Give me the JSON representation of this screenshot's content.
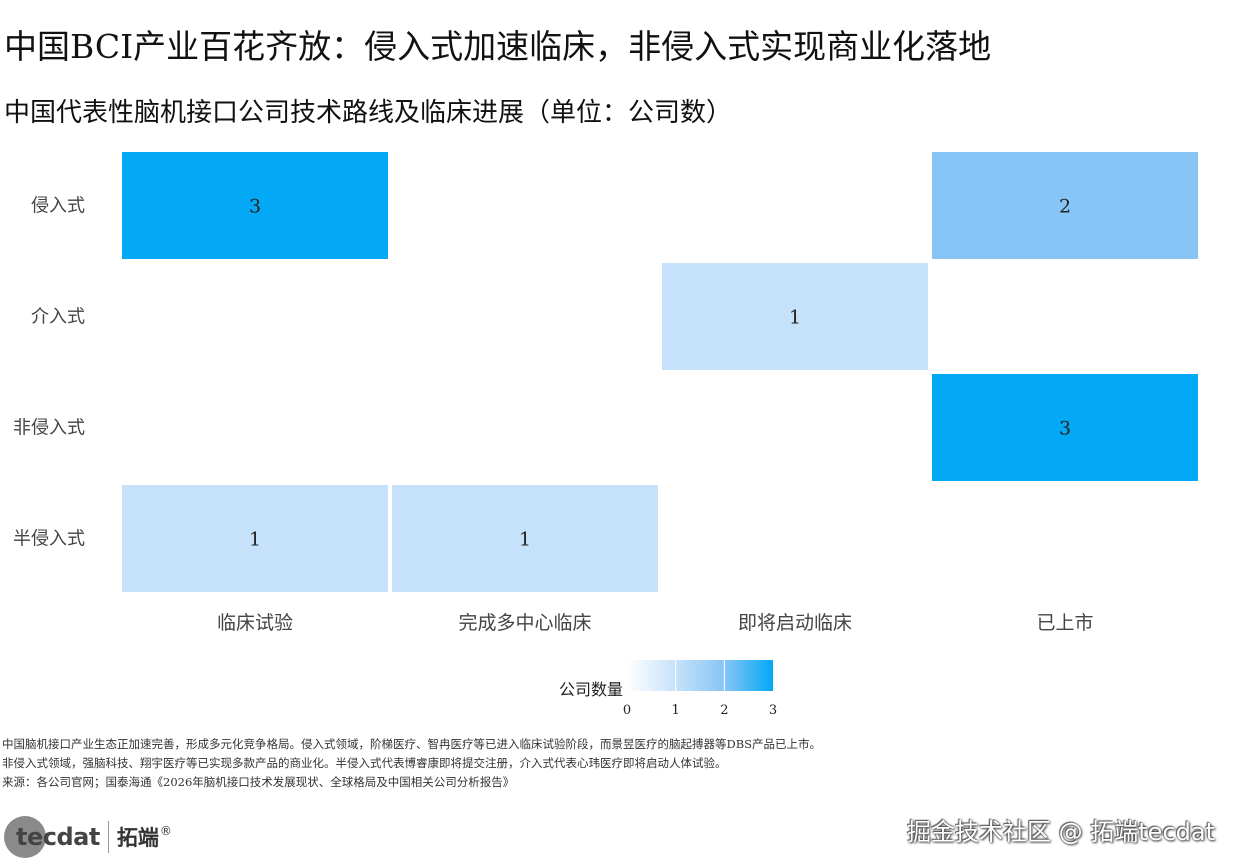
{
  "page": {
    "title": "中国BCI产业百花齐放：侵入式加速临床，非侵入式实现商业化落地",
    "notes": [
      "中国脑机接口产业生态正加速完善，形成多元化竞争格局。侵入式领域，阶梯医疗、智冉医疗等已进入临床试验阶段，而景昱医疗的脑起搏器等DBS产品已上市。",
      "非侵入式领域，强脑科技、翔宇医疗等已实现多款产品的商业化。半侵入式代表博睿康即将提交注册，介入式代表心玮医疗即将启动人体试验。",
      "来源：各公司官网；国泰海通《2026年脑机接口技术发展现状、全球格局及中国相关公司分析报告》"
    ],
    "brand_word": "tecdat",
    "brand_cn": "拓端",
    "brand_reg": "®",
    "watermark": "掘金技术社区 @ 拓端tecdat"
  },
  "chart_data": {
    "type": "heatmap",
    "title": "中国代表性脑机接口公司技术路线及临床进展（单位：公司数）",
    "x_categories": [
      "临床试验",
      "完成多中心临床",
      "即将启动临床",
      "已上市"
    ],
    "y_categories": [
      "侵入式",
      "介入式",
      "非侵入式",
      "半侵入式"
    ],
    "values": [
      [
        3,
        null,
        null,
        2
      ],
      [
        null,
        null,
        1,
        null
      ],
      [
        null,
        null,
        null,
        3
      ],
      [
        1,
        1,
        null,
        null
      ]
    ],
    "legend": {
      "title": "公司数量",
      "ticks": [
        "0",
        "1",
        "2",
        "3"
      ],
      "range": [
        0,
        3
      ],
      "placement": "bottom-center"
    },
    "colors": {
      "low": "#ffffff",
      "v1": "#c6e2fa",
      "v2": "#86c5f5",
      "v3": "#03a9f4"
    }
  }
}
